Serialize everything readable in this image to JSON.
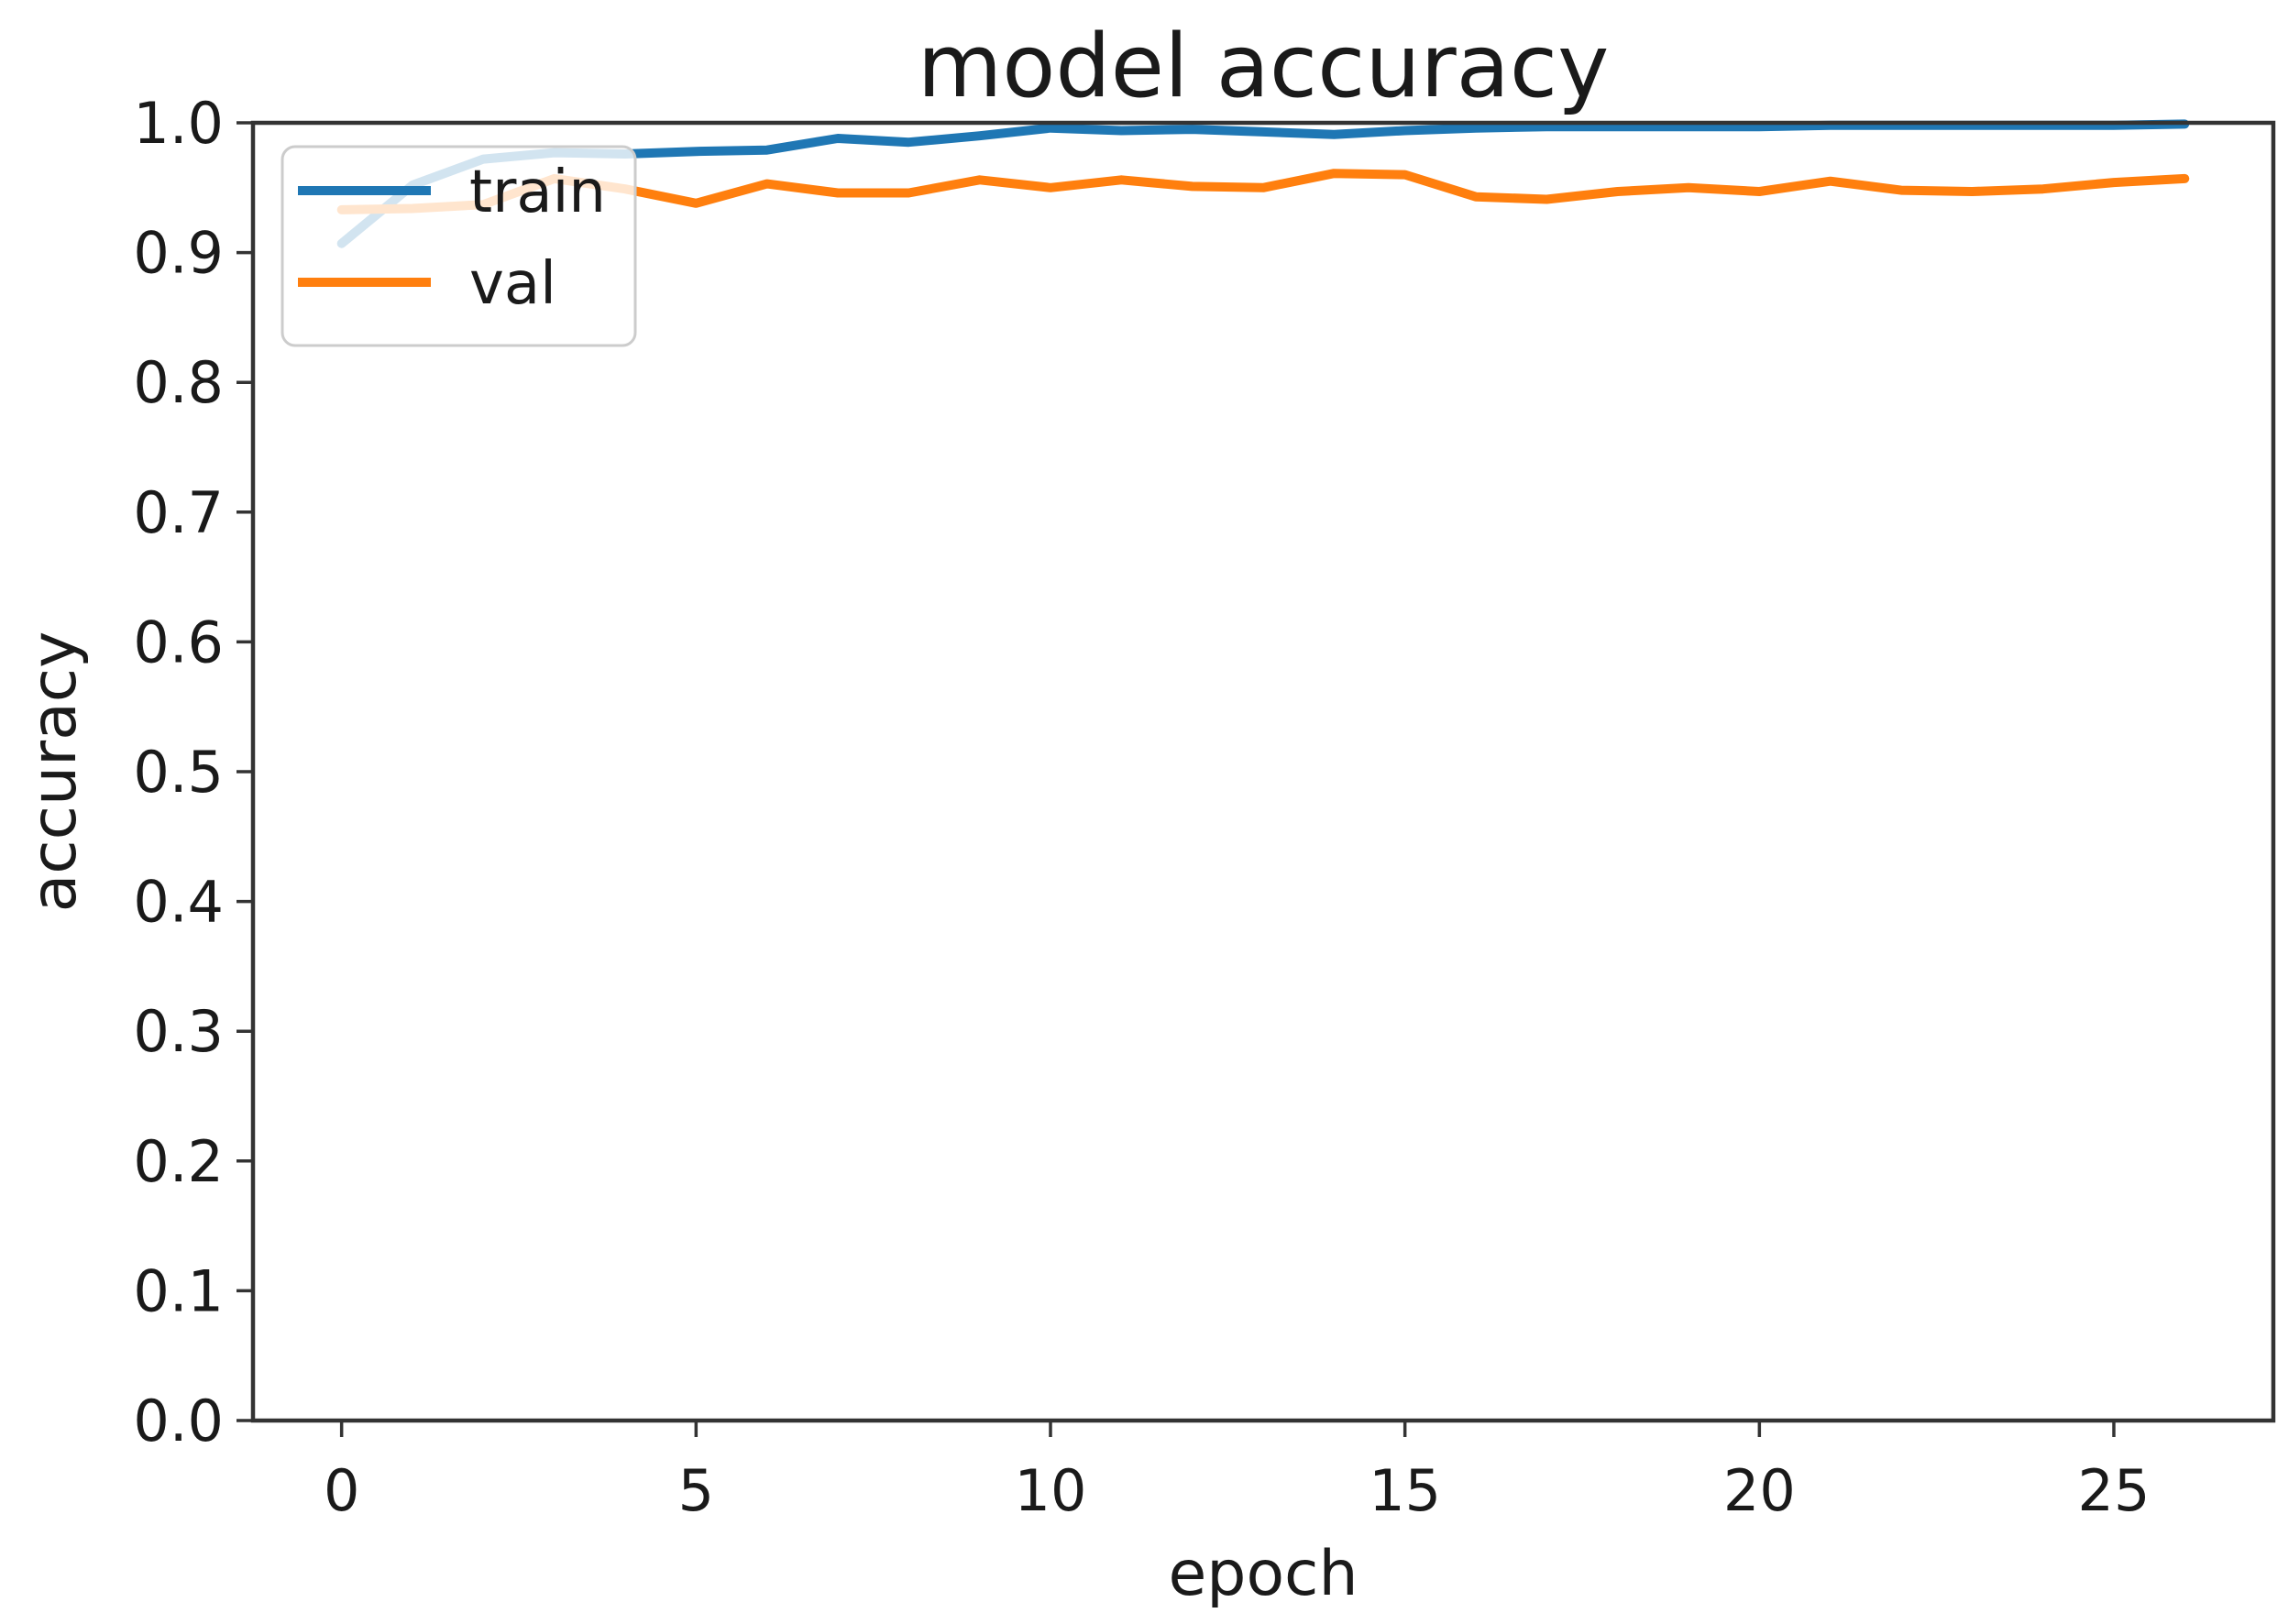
{
  "chart_data": {
    "type": "line",
    "title": "model accuracy",
    "xlabel": "epoch",
    "ylabel": "accuracy",
    "grid": false,
    "xlim": [
      -1.25,
      27.25
    ],
    "ylim": [
      0.0,
      1.0
    ],
    "x_ticks": [
      0,
      5,
      10,
      15,
      20,
      25
    ],
    "y_ticks": [
      {
        "value": 0.0,
        "label": "0.0"
      },
      {
        "value": 0.1,
        "label": "0.1"
      },
      {
        "value": 0.2,
        "label": "0.2"
      },
      {
        "value": 0.3,
        "label": "0.3"
      },
      {
        "value": 0.4,
        "label": "0.4"
      },
      {
        "value": 0.5,
        "label": "0.5"
      },
      {
        "value": 0.6,
        "label": "0.6"
      },
      {
        "value": 0.7,
        "label": "0.7"
      },
      {
        "value": 0.8,
        "label": "0.8"
      },
      {
        "value": 0.9,
        "label": "0.9"
      },
      {
        "value": 1.0,
        "label": "1.0"
      }
    ],
    "x": [
      0,
      1,
      2,
      3,
      4,
      5,
      6,
      7,
      8,
      9,
      10,
      11,
      12,
      13,
      14,
      15,
      16,
      17,
      18,
      19,
      20,
      21,
      22,
      23,
      24,
      25,
      26
    ],
    "series": [
      {
        "name": "train",
        "color": "#1f77b4",
        "values": [
          0.907,
          0.952,
          0.972,
          0.977,
          0.976,
          0.978,
          0.979,
          0.988,
          0.985,
          0.99,
          0.996,
          0.994,
          0.995,
          0.993,
          0.991,
          0.994,
          0.996,
          0.997,
          0.997,
          0.997,
          0.997,
          0.998,
          0.998,
          0.998,
          0.998,
          0.998,
          0.999
        ]
      },
      {
        "name": "val",
        "color": "#ff7f0e",
        "values": [
          0.933,
          0.934,
          0.937,
          0.957,
          0.949,
          0.938,
          0.953,
          0.946,
          0.946,
          0.956,
          0.95,
          0.956,
          0.951,
          0.95,
          0.961,
          0.96,
          0.943,
          0.941,
          0.947,
          0.95,
          0.947,
          0.955,
          0.948,
          0.947,
          0.949,
          0.954,
          0.957
        ]
      }
    ],
    "legend": {
      "position": "upper left",
      "entries": [
        "train",
        "val"
      ]
    },
    "axis_color": "#333333",
    "text_color": "#1a1a1a"
  }
}
